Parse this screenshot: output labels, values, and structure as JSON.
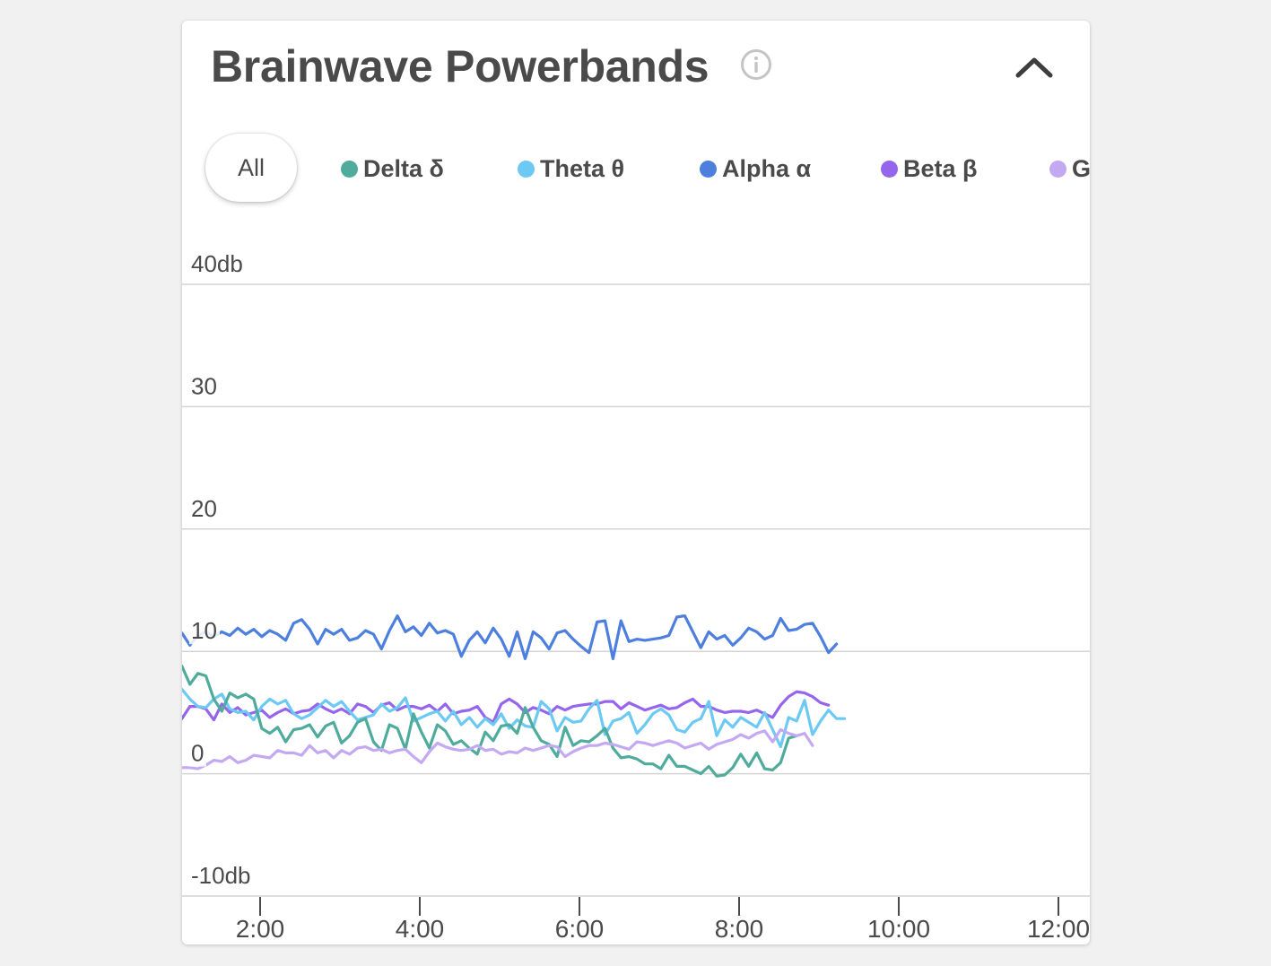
{
  "card": {
    "title": "Brainwave Powerbands",
    "info_icon": "info-circle-icon",
    "collapse_icon": "chevron-up-icon"
  },
  "filters": {
    "all_label": "All",
    "items": [
      {
        "label": "Delta δ",
        "color": "#4fab9c"
      },
      {
        "label": "Theta θ",
        "color": "#6bc9f3"
      },
      {
        "label": "Alpha α",
        "color": "#4d7fdf"
      },
      {
        "label": "Beta β",
        "color": "#9565ee"
      },
      {
        "label": "G",
        "color": "#c3a9f2"
      }
    ]
  },
  "chart_data": {
    "type": "line",
    "title": "Brainwave Powerbands",
    "xlabel": "",
    "ylabel": "db",
    "ylim": [
      -10,
      40
    ],
    "xlim_hours": [
      1.02,
      12.38
    ],
    "y_ticks": [
      {
        "value": 40,
        "label": "40db"
      },
      {
        "value": 30,
        "label": "30"
      },
      {
        "value": 20,
        "label": "20"
      },
      {
        "value": 10,
        "label": "10"
      },
      {
        "value": 0,
        "label": "0"
      },
      {
        "value": -10,
        "label": "-10db"
      }
    ],
    "x_ticks": [
      {
        "value": 2,
        "label": "2:00"
      },
      {
        "value": 4,
        "label": "4:00"
      },
      {
        "value": 6,
        "label": "6:00"
      },
      {
        "value": 8,
        "label": "8:00"
      },
      {
        "value": 10,
        "label": "10:00"
      },
      {
        "value": 12,
        "label": "12:00"
      }
    ],
    "grid": true,
    "legend_position": "top",
    "x_start_hours": 1.02,
    "x_step_hours": 0.1,
    "series": [
      {
        "name": "Alpha α",
        "color": "#4d7fdf",
        "values": [
          11.5,
          10.5,
          11.3,
          11.6,
          11.2,
          11.6,
          11.3,
          11.9,
          11.4,
          11.8,
          11.2,
          11.7,
          11.4,
          10.9,
          12.3,
          12.6,
          11.8,
          10.6,
          11.8,
          11.4,
          11.8,
          10.9,
          11.1,
          11.7,
          11.4,
          10.2,
          11.7,
          12.9,
          11.6,
          12.0,
          11.3,
          12.3,
          11.5,
          11.7,
          11.4,
          9.6,
          10.9,
          11.6,
          10.7,
          11.9,
          11.0,
          9.6,
          11.6,
          9.4,
          11.6,
          11.1,
          10.2,
          11.5,
          11.7,
          11.0,
          10.4,
          9.9,
          12.4,
          12.5,
          9.4,
          12.5,
          10.8,
          11.0,
          10.9,
          11.0,
          11.1,
          11.3,
          12.8,
          12.9,
          11.6,
          10.3,
          11.6,
          11.0,
          11.3,
          10.5,
          11.1,
          11.9,
          11.6,
          11.0,
          11.3,
          12.7,
          11.7,
          11.8,
          12.2,
          12.3,
          11.2,
          9.9,
          10.6
        ]
      },
      {
        "name": "Beta β",
        "color": "#9565ee",
        "values": [
          4.5,
          5.5,
          5.5,
          5.3,
          4.4,
          5.7,
          5.0,
          5.4,
          4.8,
          5.0,
          5.2,
          4.6,
          5.0,
          5.3,
          4.9,
          5.1,
          5.2,
          5.7,
          5.3,
          5.0,
          5.3,
          4.9,
          5.7,
          5.5,
          5.0,
          5.6,
          5.8,
          5.2,
          5.5,
          5.5,
          5.3,
          5.6,
          5.1,
          5.7,
          4.9,
          5.1,
          5.2,
          5.5,
          4.6,
          4.2,
          5.7,
          6.1,
          5.7,
          5.0,
          5.4,
          5.2,
          4.9,
          5.5,
          5.2,
          5.5,
          5.6,
          5.7,
          5.7,
          5.9,
          5.9,
          5.3,
          5.8,
          5.5,
          5.2,
          5.4,
          5.6,
          5.3,
          5.4,
          5.8,
          6.1,
          5.5,
          5.5,
          5.2,
          5.0,
          5.1,
          5.1,
          5.0,
          5.2,
          4.9,
          4.6,
          5.6,
          6.3,
          6.7,
          6.6,
          6.3,
          5.8,
          5.6
        ]
      },
      {
        "name": "Theta θ",
        "color": "#6bc9f3",
        "values": [
          6.9,
          6.1,
          5.5,
          5.4,
          6.1,
          6.5,
          5.3,
          5.0,
          5.1,
          4.4,
          5.5,
          6.1,
          5.7,
          6.0,
          4.9,
          4.5,
          4.8,
          5.4,
          6.0,
          5.5,
          5.9,
          5.1,
          4.4,
          4.6,
          4.8,
          5.7,
          5.1,
          5.4,
          6.2,
          4.3,
          4.6,
          4.9,
          5.1,
          4.3,
          5.1,
          4.0,
          4.6,
          3.8,
          4.5,
          4.0,
          4.9,
          3.7,
          4.4,
          3.9,
          3.8,
          5.9,
          5.3,
          3.5,
          4.6,
          4.2,
          4.3,
          5.3,
          6.0,
          3.2,
          4.3,
          4.5,
          5.0,
          3.3,
          4.0,
          4.9,
          5.3,
          4.8,
          3.6,
          3.4,
          4.2,
          4.5,
          5.9,
          3.1,
          4.4,
          3.8,
          4.6,
          4.2,
          3.8,
          5.0,
          3.6,
          2.2,
          4.6,
          4.3,
          6.0,
          3.2,
          4.3,
          5.2,
          4.5,
          4.5
        ]
      },
      {
        "name": "Delta δ",
        "color": "#4fab9c",
        "values": [
          8.8,
          7.3,
          8.2,
          8.0,
          6.1,
          5.1,
          6.6,
          6.2,
          6.5,
          6.1,
          3.7,
          3.3,
          3.8,
          2.6,
          3.6,
          3.7,
          4.0,
          3.0,
          3.9,
          4.2,
          2.5,
          3.1,
          4.2,
          4.5,
          2.6,
          1.9,
          4.0,
          3.7,
          2.0,
          4.9,
          3.4,
          2.1,
          4.0,
          3.5,
          2.4,
          2.7,
          2.1,
          1.6,
          3.4,
          2.7,
          3.9,
          4.0,
          3.3,
          5.4,
          3.8,
          2.7,
          2.4,
          1.4,
          3.8,
          2.3,
          2.7,
          2.6,
          3.1,
          3.7,
          2.1,
          1.3,
          1.4,
          1.2,
          0.8,
          0.8,
          0.4,
          1.5,
          0.6,
          0.6,
          0.3,
          0.0,
          0.6,
          -0.2,
          -0.1,
          0.5,
          1.6,
          0.6,
          1.7,
          0.4,
          0.3,
          0.9,
          2.9,
          3.1
        ]
      },
      {
        "name": "G",
        "color": "#c3a9f2",
        "values": [
          0.5,
          0.5,
          0.4,
          0.7,
          1.1,
          1.0,
          1.4,
          0.9,
          1.1,
          1.5,
          1.4,
          1.3,
          1.9,
          1.7,
          1.7,
          1.5,
          2.3,
          1.7,
          1.9,
          1.3,
          1.9,
          1.6,
          2.1,
          2.2,
          1.9,
          2.0,
          1.7,
          1.9,
          2.0,
          1.4,
          0.9,
          1.8,
          2.5,
          2.2,
          2.0,
          1.9,
          2.0,
          2.3,
          1.9,
          2.0,
          1.6,
          1.8,
          1.7,
          2.1,
          1.9,
          2.1,
          2.3,
          2.2,
          1.4,
          1.8,
          2.1,
          2.3,
          2.3,
          2.5,
          2.4,
          2.2,
          2.0,
          2.6,
          2.5,
          2.3,
          2.5,
          2.7,
          2.5,
          2.1,
          2.3,
          2.5,
          2.0,
          2.4,
          2.6,
          2.8,
          3.2,
          2.9,
          3.3,
          3.5,
          2.6,
          3.6,
          3.3,
          3.1,
          3.3,
          2.3
        ]
      }
    ]
  }
}
